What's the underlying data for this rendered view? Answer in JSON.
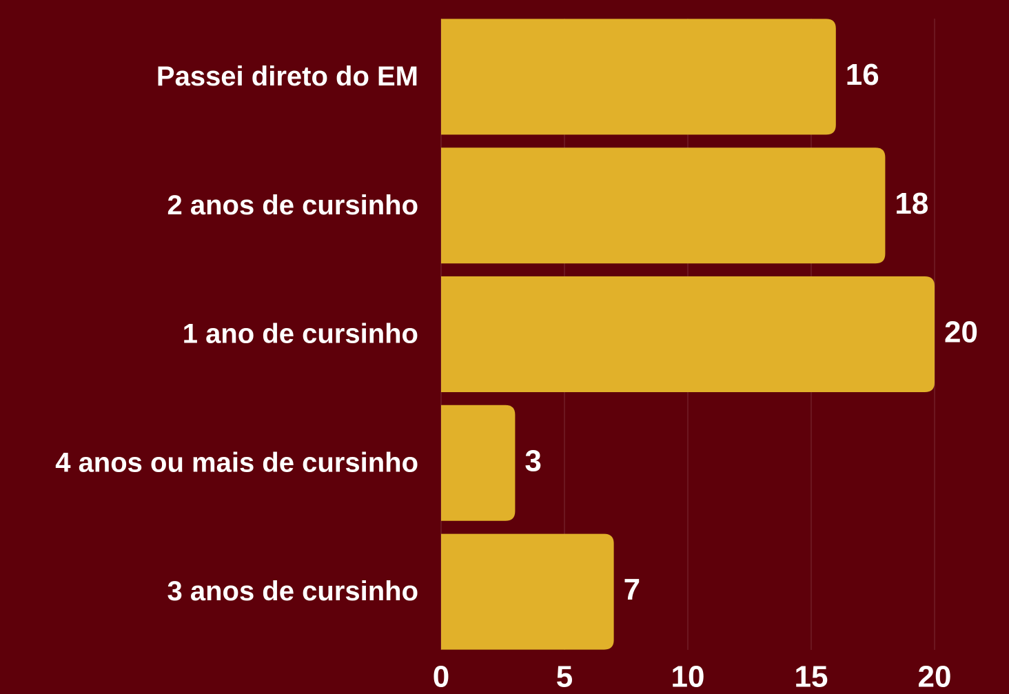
{
  "chart_data": {
    "type": "barh",
    "categories": [
      "Passei direto do EM",
      "2 anos de cursinho",
      "1 ano de cursinho",
      "4 anos ou mais de cursinho",
      "3 anos de cursinho"
    ],
    "values": [
      16,
      18,
      20,
      3,
      7
    ],
    "color": "#e1b12a",
    "xlim": [
      0,
      20
    ],
    "xticks": [
      0,
      5,
      10,
      15,
      20
    ],
    "grid": true
  }
}
